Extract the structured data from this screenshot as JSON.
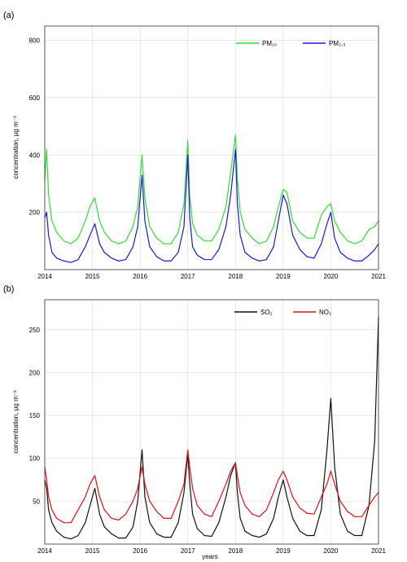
{
  "chart_data": [
    {
      "panel": "(a)",
      "type": "line",
      "xlabel": "",
      "ylabel": "concentration, μg m⁻³",
      "xlim": [
        2014,
        2021
      ],
      "ylim": [
        0,
        850
      ],
      "x_ticks": [
        2014,
        2015,
        2016,
        2017,
        2018,
        2019,
        2020,
        2021
      ],
      "y_ticks": [
        200,
        400,
        600,
        800
      ],
      "grid": true,
      "legend_position": "top-right",
      "x": [
        2014.0,
        2014.04,
        2014.08,
        2014.15,
        2014.25,
        2014.4,
        2014.55,
        2014.7,
        2014.85,
        2014.95,
        2015.05,
        2015.15,
        2015.25,
        2015.4,
        2015.55,
        2015.7,
        2015.85,
        2015.95,
        2016.04,
        2016.1,
        2016.2,
        2016.35,
        2016.5,
        2016.65,
        2016.8,
        2016.92,
        2017.0,
        2017.04,
        2017.1,
        2017.2,
        2017.35,
        2017.5,
        2017.65,
        2017.8,
        2017.9,
        2018.0,
        2018.04,
        2018.1,
        2018.2,
        2018.35,
        2018.5,
        2018.65,
        2018.8,
        2018.9,
        2019.0,
        2019.08,
        2019.2,
        2019.35,
        2019.5,
        2019.65,
        2019.8,
        2019.92,
        2020.0,
        2020.08,
        2020.2,
        2020.35,
        2020.5,
        2020.65,
        2020.8,
        2020.92,
        2021.0
      ],
      "series": [
        {
          "name": "PM₁₀",
          "color": "#33dd33",
          "values": [
            310,
            420,
            260,
            170,
            130,
            100,
            90,
            110,
            170,
            220,
            250,
            170,
            130,
            100,
            90,
            100,
            150,
            220,
            400,
            250,
            150,
            110,
            90,
            90,
            130,
            230,
            450,
            260,
            160,
            120,
            100,
            100,
            140,
            220,
            340,
            470,
            320,
            200,
            140,
            110,
            90,
            100,
            150,
            220,
            280,
            270,
            170,
            130,
            110,
            110,
            190,
            220,
            230,
            170,
            130,
            100,
            90,
            100,
            140,
            150,
            170
          ]
        },
        {
          "name": "PM₂.₅",
          "color": "#1a1ad6",
          "values": [
            180,
            200,
            120,
            60,
            40,
            30,
            25,
            35,
            80,
            120,
            160,
            90,
            60,
            40,
            30,
            35,
            80,
            150,
            330,
            170,
            80,
            45,
            30,
            30,
            60,
            150,
            400,
            180,
            80,
            50,
            35,
            35,
            70,
            150,
            260,
            420,
            230,
            120,
            60,
            40,
            30,
            35,
            80,
            170,
            260,
            230,
            120,
            70,
            45,
            40,
            90,
            160,
            200,
            110,
            60,
            40,
            30,
            30,
            50,
            70,
            90
          ]
        }
      ]
    },
    {
      "panel": "(b)",
      "type": "line",
      "xlabel": "years",
      "ylabel": "concentration, μg m⁻³",
      "xlim": [
        2014,
        2021
      ],
      "ylim": [
        0,
        285
      ],
      "x_ticks": [
        2014,
        2015,
        2016,
        2017,
        2018,
        2019,
        2020,
        2021
      ],
      "y_ticks": [
        50,
        100,
        150,
        200,
        250
      ],
      "grid": true,
      "legend_position": "top-right",
      "x": [
        2014.0,
        2014.04,
        2014.08,
        2014.15,
        2014.25,
        2014.4,
        2014.55,
        2014.7,
        2014.85,
        2014.95,
        2015.05,
        2015.15,
        2015.25,
        2015.4,
        2015.55,
        2015.7,
        2015.85,
        2015.95,
        2016.04,
        2016.1,
        2016.2,
        2016.35,
        2016.5,
        2016.65,
        2016.8,
        2016.92,
        2017.0,
        2017.04,
        2017.1,
        2017.2,
        2017.35,
        2017.5,
        2017.65,
        2017.8,
        2017.9,
        2018.0,
        2018.04,
        2018.1,
        2018.2,
        2018.35,
        2018.5,
        2018.65,
        2018.8,
        2018.9,
        2019.0,
        2019.08,
        2019.2,
        2019.35,
        2019.5,
        2019.65,
        2019.8,
        2019.92,
        2020.0,
        2020.08,
        2020.2,
        2020.35,
        2020.5,
        2020.65,
        2020.8,
        2020.92,
        2021.0
      ],
      "series": [
        {
          "name": "SO₂",
          "color": "#111111",
          "values": [
            75,
            65,
            40,
            25,
            15,
            8,
            6,
            10,
            25,
            45,
            65,
            35,
            20,
            12,
            7,
            7,
            20,
            50,
            110,
            55,
            25,
            12,
            8,
            8,
            25,
            60,
            105,
            70,
            35,
            18,
            10,
            9,
            25,
            55,
            80,
            95,
            60,
            30,
            15,
            10,
            8,
            12,
            30,
            55,
            75,
            55,
            30,
            15,
            10,
            10,
            40,
            110,
            170,
            90,
            35,
            15,
            10,
            10,
            45,
            120,
            265
          ]
        },
        {
          "name": "NO₂",
          "color": "#e01010",
          "values": [
            90,
            75,
            55,
            40,
            30,
            25,
            25,
            40,
            55,
            70,
            80,
            55,
            40,
            30,
            28,
            35,
            50,
            65,
            90,
            70,
            50,
            38,
            30,
            30,
            50,
            70,
            110,
            90,
            65,
            45,
            35,
            32,
            50,
            70,
            85,
            95,
            80,
            60,
            45,
            35,
            32,
            40,
            60,
            75,
            85,
            75,
            55,
            42,
            36,
            35,
            55,
            70,
            85,
            70,
            50,
            38,
            32,
            32,
            45,
            55,
            60
          ]
        }
      ]
    }
  ]
}
